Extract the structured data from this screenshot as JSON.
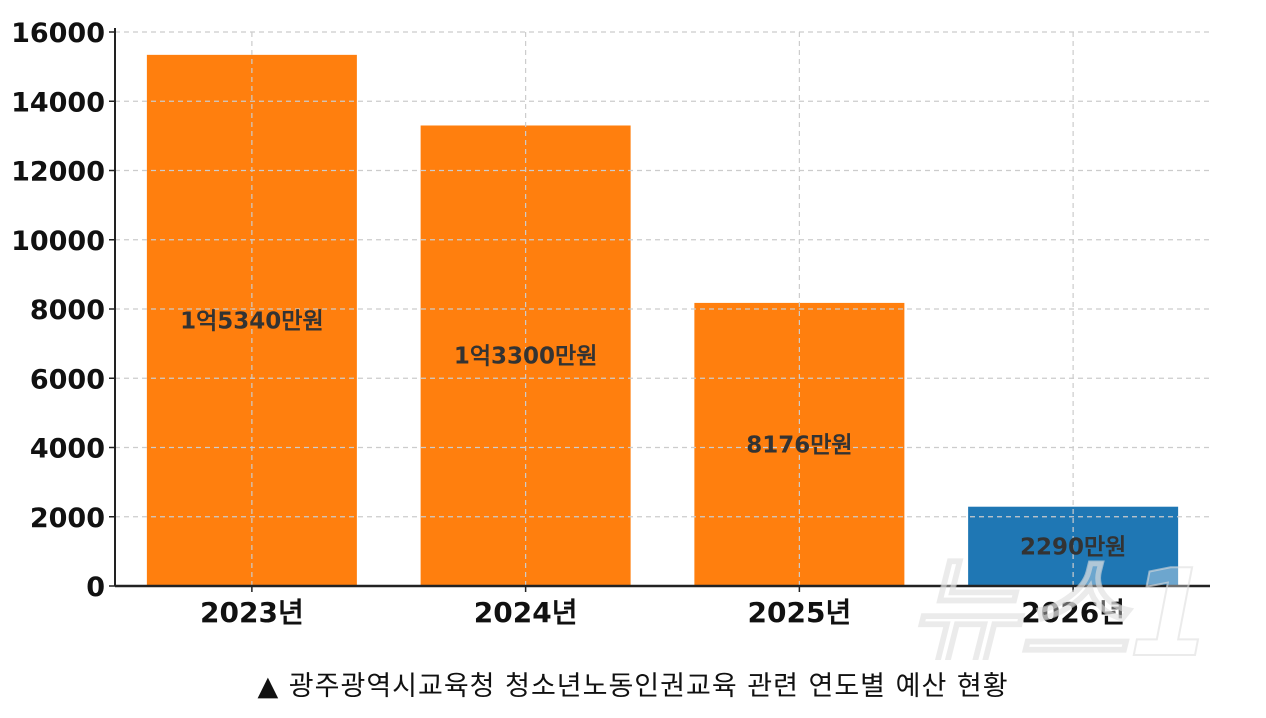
{
  "chart_data": {
    "type": "bar",
    "categories": [
      "2023년",
      "2024년",
      "2025년",
      "2026년"
    ],
    "values": [
      15340,
      13300,
      8176,
      2290
    ],
    "data_labels": [
      "1억5340만원",
      "1억3300만원",
      "8176만원",
      "2290만원"
    ],
    "bar_colors": [
      "#ff7f0e",
      "#ff7f0e",
      "#ff7f0e",
      "#1f77b4"
    ],
    "yticks": [
      0,
      2000,
      4000,
      6000,
      8000,
      10000,
      12000,
      14000,
      16000
    ],
    "ylim": [
      0,
      16000
    ],
    "grid": true,
    "title": "",
    "xlabel": "",
    "ylabel": ""
  },
  "caption": {
    "marker": "▲",
    "text": "광주광역시교육청 청소년노동인권교육 관련 연도별 예산 현황"
  },
  "watermark": "뉴스1"
}
